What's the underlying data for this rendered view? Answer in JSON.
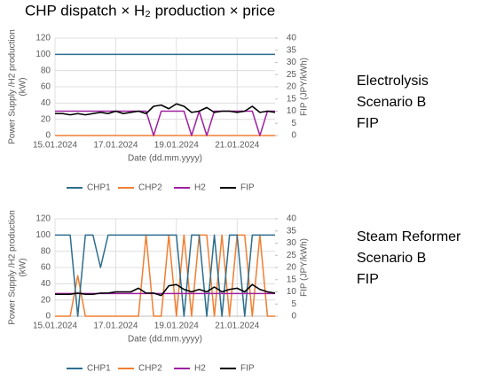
{
  "title": "CHP dispatch × H₂ production × price",
  "chart_data": [
    {
      "type": "line",
      "annotation": [
        "Electrolysis",
        "Scenario B",
        "FIP"
      ],
      "ylabel": [
        "Power Supply /H2 production",
        "(kW)"
      ],
      "y2label": "FIP (JPY/kWh)",
      "xlabel": "Date (dd.mm.yyyy)",
      "categories": [
        "15.01.2024",
        null,
        null,
        null,
        null,
        null,
        null,
        null,
        "17.01.2024",
        null,
        null,
        null,
        null,
        null,
        null,
        null,
        "19.01.2024",
        null,
        null,
        null,
        null,
        null,
        null,
        null,
        "21.01.2024",
        null,
        null,
        null,
        null,
        null
      ],
      "ylim": [
        0,
        120
      ],
      "yticks": [
        0,
        20,
        40,
        60,
        80,
        100,
        120
      ],
      "y2lim": [
        0,
        40
      ],
      "y2ticks": [
        0,
        5,
        10,
        15,
        20,
        25,
        30,
        35,
        40
      ],
      "grid": true,
      "legend": "bottom",
      "series": [
        {
          "name": "CHP1",
          "color": "#2e6e8e",
          "values": [
            100,
            100,
            100,
            100,
            100,
            100,
            100,
            100,
            100,
            100,
            100,
            100,
            100,
            100,
            100,
            100,
            100,
            100,
            100,
            100,
            100,
            100,
            100,
            100,
            100,
            100,
            100,
            100,
            100,
            100
          ]
        },
        {
          "name": "CHP2",
          "color": "#f07f33",
          "values": [
            0,
            0,
            0,
            0,
            0,
            0,
            0,
            0,
            0,
            0,
            0,
            0,
            0,
            0,
            0,
            0,
            0,
            0,
            0,
            0,
            0,
            0,
            0,
            0,
            0,
            0,
            0,
            0,
            0,
            0
          ]
        },
        {
          "name": "H2",
          "color": "#a020a0",
          "values": [
            30,
            30,
            30,
            30,
            30,
            30,
            30,
            30,
            30,
            30,
            30,
            30,
            30,
            0,
            30,
            30,
            30,
            30,
            0,
            30,
            0,
            30,
            30,
            30,
            30,
            30,
            30,
            0,
            30,
            30
          ]
        },
        {
          "name": "FIP",
          "color": "#000000",
          "axis": "y2",
          "values": [
            9,
            9,
            8.5,
            9,
            8.5,
            9,
            9.5,
            9,
            10,
            9,
            9.5,
            10,
            9,
            12,
            12.5,
            11,
            13,
            12,
            9.5,
            10,
            11.5,
            9.5,
            10,
            10,
            9.5,
            10,
            12,
            9.5,
            10,
            9.5
          ]
        }
      ]
    },
    {
      "type": "line",
      "annotation": [
        "Steam Reformer",
        "Scenario B",
        "FIP"
      ],
      "ylabel": [
        "Power Supply /H2 production",
        "(kW)"
      ],
      "y2label": "FIP (JPY/kWh)",
      "xlabel": "Date (dd.mm.yyyy)",
      "categories": [
        "15.01.2024",
        null,
        null,
        null,
        null,
        null,
        null,
        null,
        "17.01.2024",
        null,
        null,
        null,
        null,
        null,
        null,
        null,
        "19.01.2024",
        null,
        null,
        null,
        null,
        null,
        null,
        null,
        "21.01.2024",
        null,
        null,
        null,
        null,
        null
      ],
      "ylim": [
        0,
        120
      ],
      "yticks": [
        0,
        20,
        40,
        60,
        80,
        100,
        120
      ],
      "y2lim": [
        0,
        40
      ],
      "y2ticks": [
        0,
        5,
        10,
        15,
        20,
        25,
        30,
        35,
        40
      ],
      "grid": true,
      "legend": "bottom",
      "series": [
        {
          "name": "CHP1",
          "color": "#2e6e8e",
          "values": [
            100,
            100,
            100,
            0,
            100,
            100,
            60,
            100,
            100,
            100,
            100,
            100,
            100,
            100,
            100,
            100,
            100,
            0,
            100,
            100,
            0,
            100,
            0,
            100,
            100,
            0,
            100,
            100,
            100,
            100
          ]
        },
        {
          "name": "CHP2",
          "color": "#f07f33",
          "values": [
            0,
            0,
            0,
            50,
            0,
            0,
            0,
            0,
            0,
            0,
            0,
            0,
            100,
            0,
            0,
            100,
            0,
            100,
            0,
            100,
            100,
            0,
            100,
            0,
            100,
            100,
            0,
            100,
            0,
            0
          ]
        },
        {
          "name": "H2",
          "color": "#a020a0",
          "values": [
            28,
            28,
            28,
            28,
            28,
            28,
            28,
            28,
            28,
            28,
            28,
            28,
            28,
            28,
            28,
            28,
            28,
            28,
            28,
            28,
            28,
            28,
            28,
            28,
            28,
            28,
            28,
            28,
            28,
            28
          ]
        },
        {
          "name": "FIP",
          "color": "#000000",
          "axis": "y2",
          "values": [
            9,
            9,
            9,
            9.5,
            9,
            9,
            9.5,
            9.5,
            10,
            10,
            10,
            11.5,
            9.5,
            9.5,
            8.5,
            12.5,
            13,
            11,
            10,
            11,
            10,
            12,
            10,
            11,
            11.5,
            10,
            13,
            11,
            10,
            9.5
          ]
        }
      ]
    }
  ]
}
